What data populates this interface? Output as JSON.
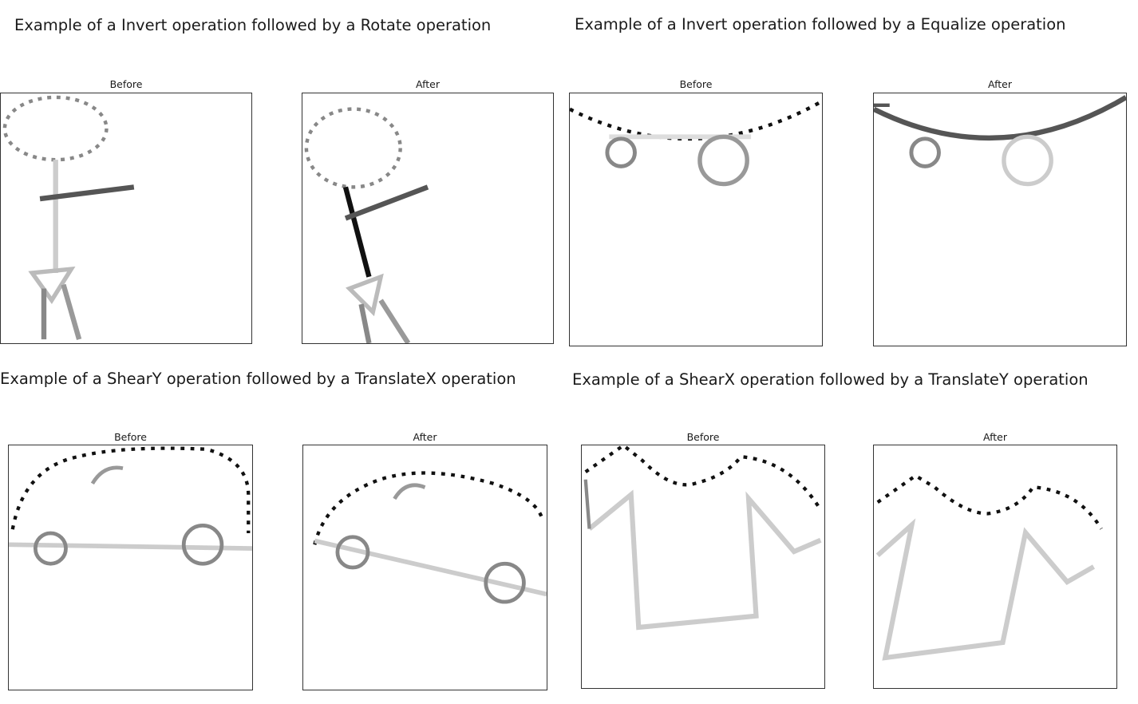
{
  "examples": [
    {
      "title": "Example of a Invert operation followed by a Rotate operation",
      "before_label": "Before",
      "after_label": "After",
      "before_image": "stick-figure-sketch",
      "after_image": "stick-figure-sketch-rotated"
    },
    {
      "title": "Example of a Invert operation followed by a Equalize operation",
      "before_label": "Before",
      "after_label": "After",
      "before_image": "skateboard-sketch",
      "after_image": "skateboard-sketch-equalized"
    },
    {
      "title": "Example of a ShearY operation followed by a TranslateX operation",
      "before_label": "Before",
      "after_label": "After",
      "before_image": "car-sketch",
      "after_image": "car-sketch-sheared-translated"
    },
    {
      "title": "Example of a ShearX operation followed by a TranslateY operation",
      "before_label": "Before",
      "after_label": "After",
      "before_image": "tshirt-sketch",
      "after_image": "tshirt-sketch-sheared-translated"
    }
  ],
  "colors": {
    "black": "#111111",
    "dark_gray": "#555555",
    "mid_gray": "#888888",
    "light_gray": "#c8c8c8",
    "frame": "#333333"
  }
}
